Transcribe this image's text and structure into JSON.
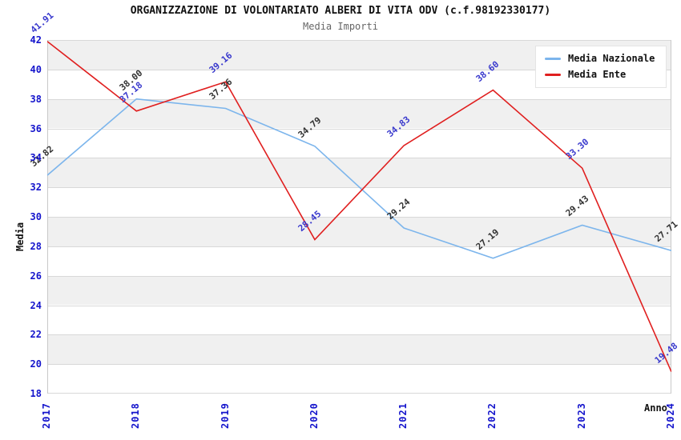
{
  "header": {
    "title": "ORGANIZZAZIONE DI VOLONTARIATO ALBERI DI VITA ODV (c.f.98192330177)",
    "subtitle": "Media Importi"
  },
  "legend": {
    "position": "top-right",
    "items": [
      {
        "label": "Media Nazionale",
        "color": "#7cb5ec"
      },
      {
        "label": "Media Ente",
        "color": "#e01f1f"
      }
    ]
  },
  "axes": {
    "y_title": "Media",
    "x_title": "Anno",
    "y_ticks": [
      42,
      40,
      38,
      36,
      34,
      32,
      30,
      28,
      26,
      24,
      22,
      20,
      18
    ],
    "x_ticks": [
      "2017",
      "2018",
      "2019",
      "2020",
      "2021",
      "2022",
      "2023",
      "2024"
    ],
    "tick_label_color": "#1414cc"
  },
  "style": {
    "band_gray": "#f0f0f0",
    "band_white": "#ffffff",
    "gridline_color": "#d8d8d8",
    "border_color": "#c9c9c9"
  },
  "chart_data": {
    "type": "line",
    "title": "ORGANIZZAZIONE DI VOLONTARIATO ALBERI DI VITA ODV (c.f.98192330177)",
    "subtitle": "Media Importi",
    "xlabel": "Anno",
    "ylabel": "Media",
    "x": [
      "2017",
      "2018",
      "2019",
      "2020",
      "2021",
      "2022",
      "2023",
      "2024"
    ],
    "ylim": [
      18,
      42
    ],
    "y_tick_step": 2,
    "grid": true,
    "background_bands": "alternating gray/white every 2 units, gray at 40-42",
    "legend_position": "top-right",
    "series": [
      {
        "name": "Media Nazionale",
        "color": "#7cb5ec",
        "label_color": "#333333",
        "values": [
          32.82,
          38.0,
          37.36,
          34.79,
          29.24,
          27.19,
          29.43,
          27.71
        ],
        "labels": [
          "32.82",
          "38.00",
          "37.36",
          "34.79",
          "29.24",
          "27.19",
          "29.43",
          "27.71"
        ]
      },
      {
        "name": "Media Ente",
        "color": "#e01f1f",
        "label_color": "#3a3acd",
        "values": [
          41.91,
          37.18,
          39.16,
          28.45,
          34.83,
          38.6,
          33.3,
          19.48
        ],
        "labels": [
          "41.91",
          "37.18",
          "39.16",
          "28.45",
          "34.83",
          "38.60",
          "33.30",
          "19.48"
        ]
      }
    ]
  }
}
